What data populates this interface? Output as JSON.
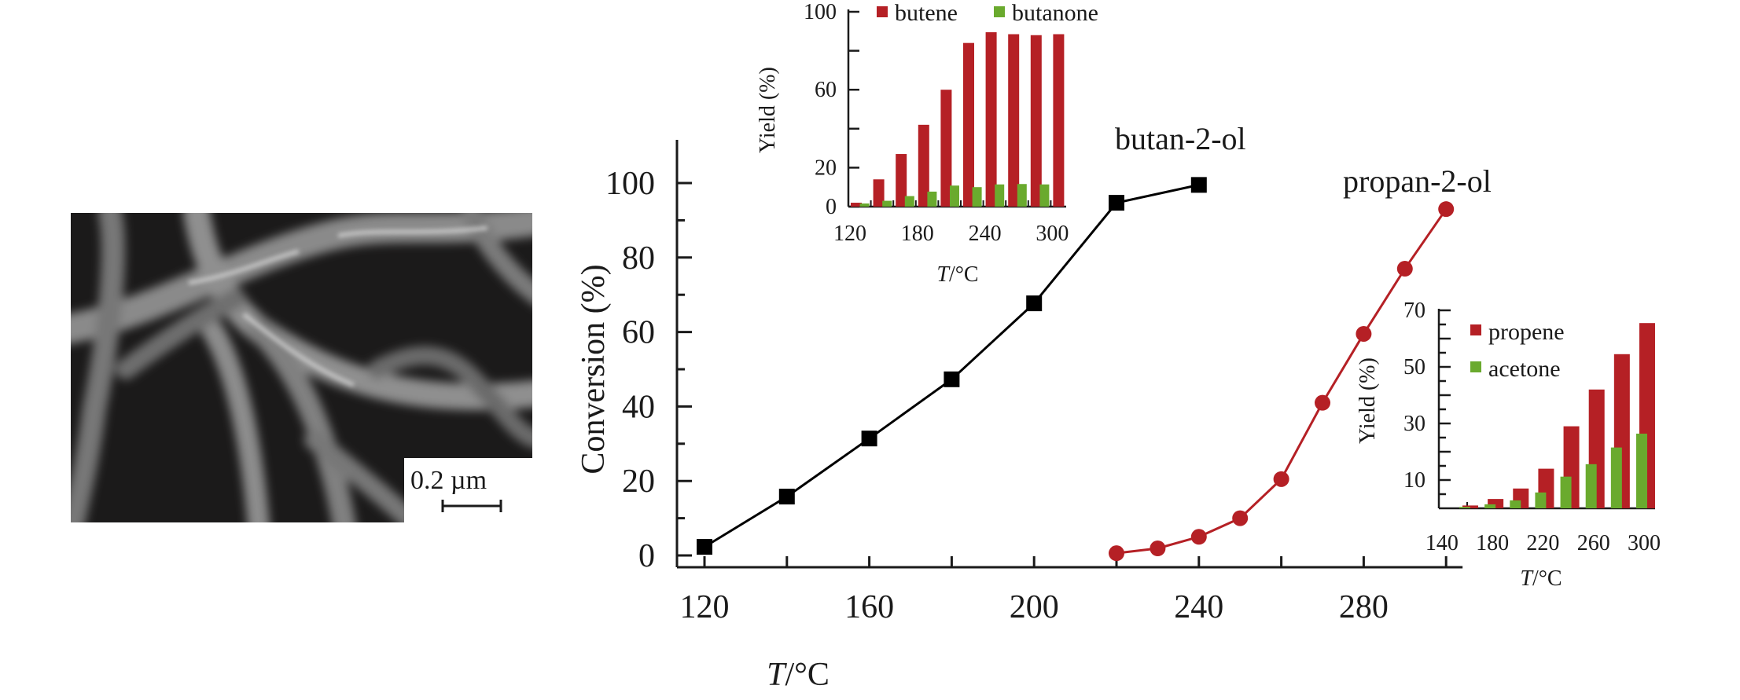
{
  "micrograph": {
    "scale_bar_label": "0.2 µm"
  },
  "chart_data": [
    {
      "type": "line",
      "xlabel_italic": "T",
      "xlabel_unit": "/°C",
      "ylabel": "Conversion (%)",
      "xlim": [
        113,
        304
      ],
      "ylim": [
        0,
        100
      ],
      "xticks": [
        120,
        160,
        200,
        240,
        280
      ],
      "yticks": [
        0,
        20,
        40,
        60,
        80,
        100
      ],
      "grid": false,
      "series": [
        {
          "name": "butan-2-ol",
          "color": "#000000",
          "marker": "square",
          "x": [
            120,
            140,
            160,
            180,
            200,
            220,
            240
          ],
          "y": [
            2.3,
            15.8,
            31.4,
            47.3,
            67.7,
            94.7,
            99.5
          ]
        },
        {
          "name": "propan-2-ol",
          "color": "#b52025",
          "marker": "circle",
          "x": [
            220,
            230,
            240,
            250,
            260,
            270,
            280,
            290,
            300
          ],
          "y": [
            0.6,
            1.9,
            5,
            10,
            20.5,
            41,
            59.5,
            77,
            93
          ]
        }
      ]
    },
    {
      "type": "bar",
      "xlabel_italic": "T",
      "xlabel_unit": "/°C",
      "ylabel": "Yield (%)",
      "ylim": [
        0,
        100
      ],
      "yticks": [
        0,
        20,
        60,
        100
      ],
      "xticks": [
        120,
        180,
        240,
        300
      ],
      "legend": "top",
      "categories": [
        120,
        140,
        160,
        180,
        200,
        220,
        240,
        260,
        280,
        300
      ],
      "series": [
        {
          "name": "butene",
          "color": "#b52025",
          "values": [
            2,
            14,
            27,
            42,
            60,
            84,
            89.5,
            88.5,
            88,
            88.5
          ]
        },
        {
          "name": "butanone",
          "color": "#6aaa2e",
          "values": [
            0,
            1.6,
            3,
            5.4,
            7.7,
            10.8,
            10,
            11.4,
            11.6,
            11.4
          ]
        }
      ]
    },
    {
      "type": "bar",
      "xlabel_italic": "T",
      "xlabel_unit": "/°C",
      "ylabel": "Yield (%)",
      "ylim": [
        0,
        70
      ],
      "yticks": [
        10,
        30,
        50,
        70
      ],
      "xticks": [
        140,
        180,
        220,
        260,
        300
      ],
      "legend": "top-left",
      "categories": [
        160,
        180,
        200,
        220,
        240,
        260,
        280,
        300
      ],
      "series": [
        {
          "name": "propene",
          "color": "#b52025",
          "values": [
            1,
            3.3,
            7,
            14,
            29,
            42,
            54.5,
            65.5
          ]
        },
        {
          "name": "acetone",
          "color": "#6aaa2e",
          "values": [
            0.5,
            1.4,
            2.8,
            5.6,
            11.2,
            15.6,
            21.5,
            26.4
          ]
        }
      ]
    }
  ]
}
